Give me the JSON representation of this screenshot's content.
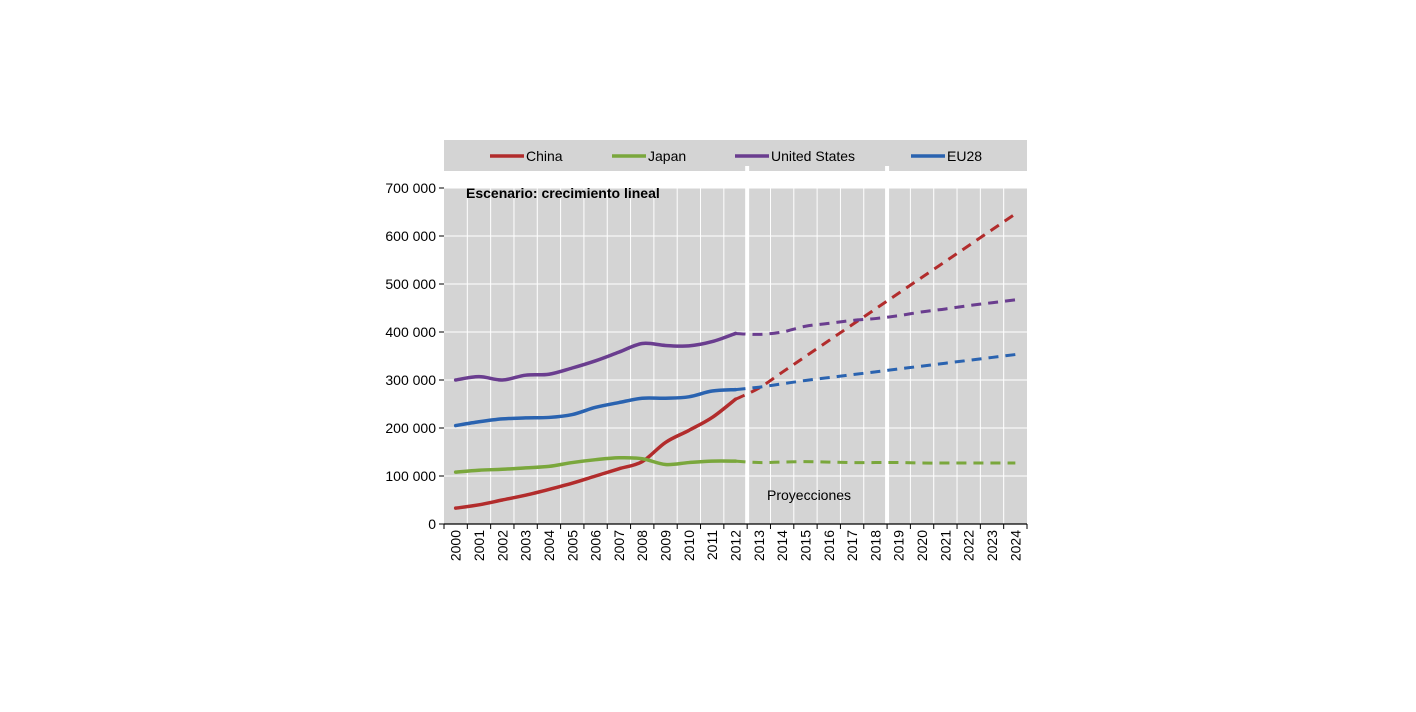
{
  "chart_data": {
    "type": "line",
    "subtitle": "Escenario: crecimiento lineal",
    "annotation": "Proyecciones",
    "legend_position": "top",
    "grid": true,
    "ylim": [
      0,
      700000
    ],
    "y_ticks": [
      0,
      100000,
      200000,
      300000,
      400000,
      500000,
      600000,
      700000
    ],
    "y_tick_labels": [
      "0",
      "100 000",
      "200 000",
      "300 000",
      "400 000",
      "500 000",
      "600 000",
      "700 000"
    ],
    "x": [
      "2000",
      "2001",
      "2002",
      "2003",
      "2004",
      "2005",
      "2006",
      "2007",
      "2008",
      "2009",
      "2010",
      "2011",
      "2012",
      "2013",
      "2014",
      "2015",
      "2016",
      "2017",
      "2018",
      "2019",
      "2020",
      "2021",
      "2022",
      "2023",
      "2024"
    ],
    "historical_end": "2012",
    "projection_separators_after": [
      "2012",
      "2018"
    ],
    "series": [
      {
        "name": "China",
        "color": "#b22c2c",
        "values": [
          33000,
          40000,
          50000,
          60000,
          72000,
          85000,
          100000,
          115000,
          130000,
          170000,
          195000,
          222000,
          260000,
          283000,
          316000,
          349000,
          382000,
          415000,
          448000,
          481000,
          514000,
          547000,
          580000,
          613000,
          646000
        ]
      },
      {
        "name": "Japan",
        "color": "#7aa73c",
        "values": [
          108000,
          112000,
          114000,
          117000,
          120000,
          128000,
          134000,
          138000,
          136000,
          124000,
          128000,
          131000,
          131000,
          128000,
          129000,
          130000,
          129000,
          128000,
          128000,
          128000,
          127000,
          127000,
          127000,
          127000,
          127000
        ]
      },
      {
        "name": "United States",
        "color": "#6a3d8f",
        "values": [
          300000,
          307000,
          300000,
          310000,
          312000,
          325000,
          340000,
          358000,
          376000,
          372000,
          371000,
          380000,
          397000,
          395000,
          400000,
          412000,
          418000,
          424000,
          428000,
          434000,
          442000,
          448000,
          455000,
          461000,
          467000
        ]
      },
      {
        "name": "EU28",
        "color": "#2a63b0",
        "values": [
          205000,
          213000,
          219000,
          221000,
          222000,
          228000,
          243000,
          253000,
          262000,
          262000,
          265000,
          277000,
          280000,
          285000,
          292000,
          299000,
          305000,
          311000,
          317000,
          323000,
          329000,
          335000,
          341000,
          347000,
          353000
        ]
      }
    ]
  }
}
